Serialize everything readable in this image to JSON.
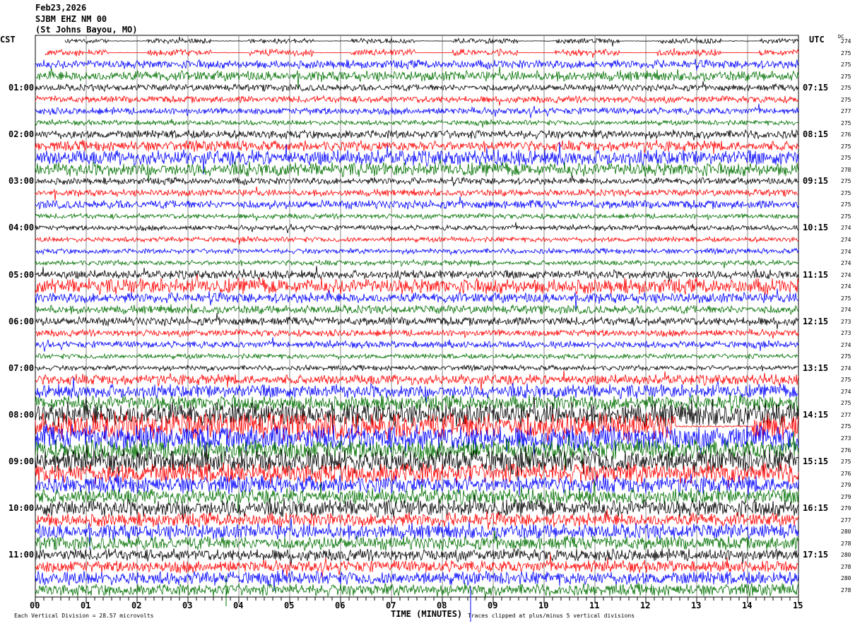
{
  "header": {
    "date": "Feb23,2026",
    "station": "SJBM EHZ NM 00",
    "location": "(St Johns Bayou, MO)"
  },
  "chart_data": {
    "type": "line",
    "title": "SJBM EHZ NM 00",
    "xlabel": "TIME (MINUTES)",
    "xlim": [
      0,
      15
    ],
    "x_ticks": [
      "00",
      "01",
      "02",
      "03",
      "04",
      "05",
      "06",
      "07",
      "08",
      "09",
      "10",
      "11",
      "12",
      "13",
      "14",
      "15"
    ],
    "left_axis_label": "CST",
    "right_axis_label": "UTC",
    "dc_label": "DC",
    "left_ticks": [
      "01:00",
      "02:00",
      "03:00",
      "04:00",
      "05:00",
      "06:00",
      "07:00",
      "08:00",
      "09:00",
      "10:00",
      "11:00"
    ],
    "right_ticks": [
      "07:15",
      "08:15",
      "09:15",
      "10:15",
      "11:15",
      "12:15",
      "13:15",
      "14:15",
      "15:15",
      "16:15",
      "17:15"
    ],
    "trace_colors": [
      "#000000",
      "#ff0000",
      "#0000ff",
      "#007000"
    ],
    "dc_offsets": [
      274,
      275,
      275,
      275,
      275,
      275,
      277,
      275,
      276,
      275,
      275,
      278,
      275,
      275,
      275,
      275,
      274,
      274,
      274,
      274,
      274,
      274,
      275,
      274,
      273,
      273,
      274,
      275,
      274,
      275,
      274,
      275,
      277,
      275,
      273,
      276,
      275,
      276,
      279,
      279,
      279,
      277,
      280,
      278,
      280,
      278,
      280,
      278
    ],
    "relative_amplitude": [
      3,
      4,
      5,
      6,
      4,
      4,
      4,
      3,
      5,
      6,
      9,
      8,
      4,
      4,
      5,
      3,
      3,
      3,
      3,
      3,
      5,
      9,
      6,
      5,
      5,
      4,
      4,
      3,
      3,
      6,
      8,
      9,
      14,
      16,
      15,
      12,
      14,
      12,
      10,
      9,
      10,
      8,
      9,
      8,
      7,
      7,
      8,
      7
    ],
    "grid": true
  },
  "footer": {
    "scale": "Each Vertical Division =   28.57 microvolts",
    "clip_note": "Traces clipped at plus/minus 5 vertical divisions"
  }
}
